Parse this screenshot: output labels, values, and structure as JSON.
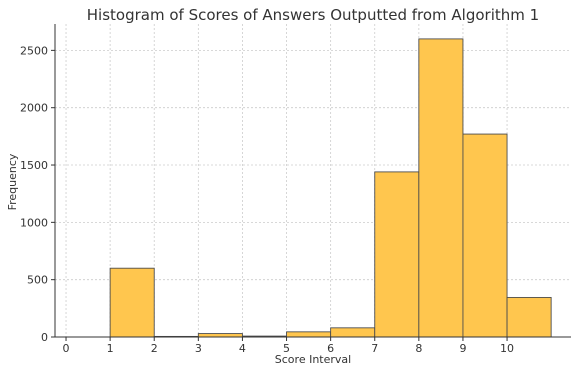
{
  "chart_data": {
    "type": "bar",
    "title": "Histogram of Scores of Answers Outputted from Algorithm 1",
    "xlabel": "Score Interval",
    "ylabel": "Frequency",
    "bin_edges": [
      1,
      2,
      3,
      4,
      5,
      6,
      7,
      8,
      9,
      10,
      11
    ],
    "values": [
      600,
      5,
      30,
      8,
      45,
      80,
      1440,
      2600,
      1770,
      345
    ],
    "x_ticks": [
      0,
      1,
      2,
      3,
      4,
      5,
      6,
      7,
      8,
      9,
      10
    ],
    "y_ticks": [
      0,
      500,
      1000,
      1500,
      2000,
      2500
    ],
    "xlim": [
      -0.25,
      11.45
    ],
    "ylim": [
      0,
      2730
    ],
    "grid": true,
    "bar_color": "#FFC64E",
    "edge_color": "#4d4d4d"
  }
}
